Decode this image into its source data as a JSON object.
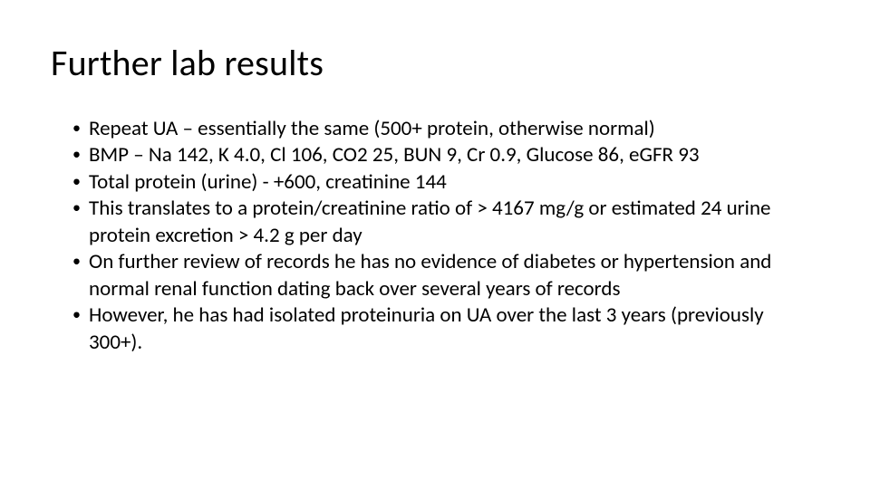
{
  "slide": {
    "title": "Further lab results",
    "title_fontsize": 40,
    "title_color": "#000000",
    "background_color": "#ffffff",
    "body_fontsize": 23,
    "body_color": "#000000",
    "bullet_marker": "•",
    "bullets": [
      "Repeat UA – essentially the same (500+ protein, otherwise normal)",
      "BMP – Na 142, K 4.0, Cl 106, CO2 25, BUN 9, Cr 0.9, Glucose 86, eGFR 93",
      "Total protein (urine) - +600, creatinine 144",
      "This translates to a protein/creatinine ratio of > 4167 mg/g or estimated 24 urine protein excretion > 4.2 g per day",
      "On further review of records he has no evidence of diabetes or hypertension and normal renal function dating back over several years of records",
      "However, he has had isolated proteinuria on UA over the last 3 years (previously 300+)."
    ]
  }
}
